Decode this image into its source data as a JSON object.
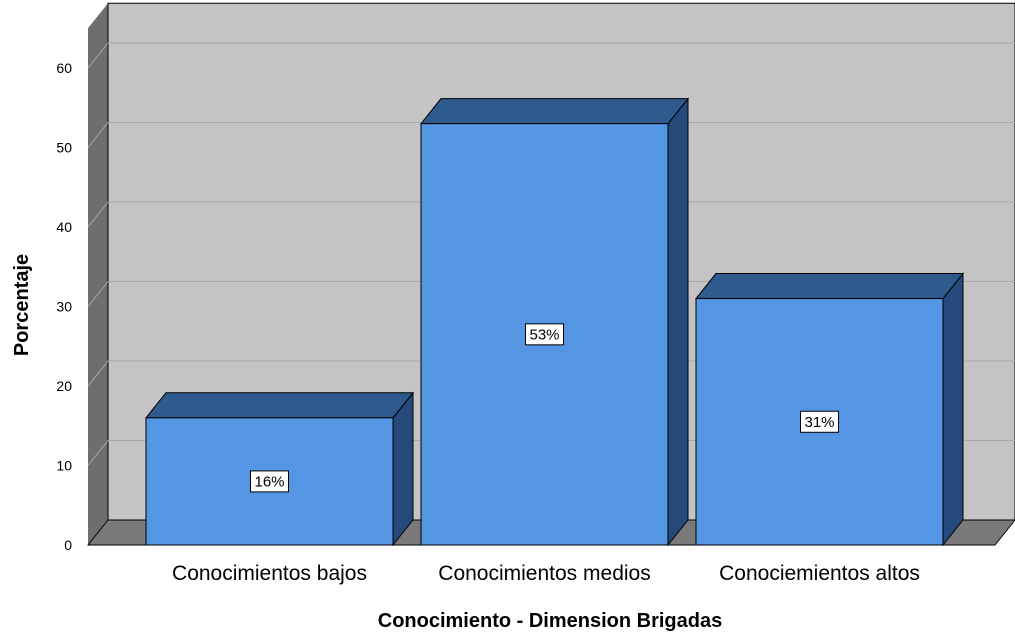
{
  "chart_data": {
    "type": "bar",
    "style": "3d",
    "categories": [
      "Conocimientos bajos",
      "Conocimientos medios",
      "Conociemientos altos"
    ],
    "values": [
      16,
      53,
      31
    ],
    "data_labels": [
      "16%",
      "53%",
      "31%"
    ],
    "xlabel": "Conocimiento - Dimension Brigadas",
    "ylabel": "Porcentaje",
    "ylim": [
      0,
      65
    ],
    "yticks": [
      0,
      10,
      20,
      30,
      40,
      50,
      60
    ],
    "grid": true,
    "colors": {
      "bar_front": "#5495E4",
      "bar_top": "#2E5A8E",
      "bar_side": "#24497A",
      "wall": "#C4C4C4",
      "wall_side": "#6E6E6E",
      "floor": "#7A7A7A",
      "gridline": "#A8A8A8"
    }
  }
}
